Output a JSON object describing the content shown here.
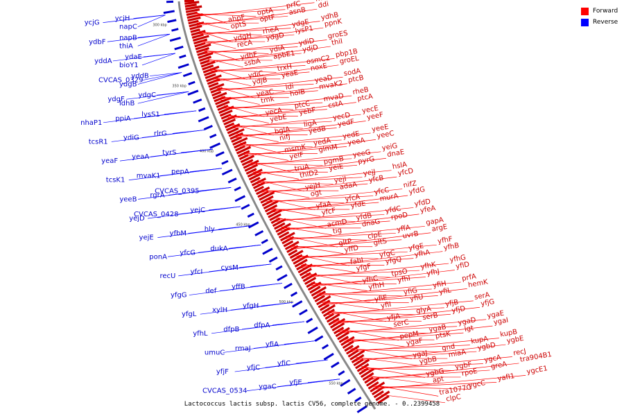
{
  "caption": "Lactococcus lactis subsp. lactis CV56, complete genome. - 0..2399458",
  "legend": [
    {
      "label": "Forward",
      "color": "#ff0000"
    },
    {
      "label": "Reverse",
      "color": "#0000ff"
    }
  ],
  "colors": {
    "forward": "#cc0000",
    "reverse": "#0000cc",
    "backbone": "#888888"
  },
  "ticks": [
    "300 kbp",
    "350 kbp",
    "400 kbp",
    "450 kbp",
    "500 kbp",
    "550 kbp"
  ],
  "forward_genes": [
    "ahpF",
    "optA",
    "prfC",
    "mutM",
    "optS",
    "optF",
    "asnB",
    "ddi",
    "ydgH",
    "rheA",
    "ydgE",
    "ydhB",
    "recA",
    "ydgD",
    "lysP1",
    "ppnK",
    "ydhF",
    "ydiA",
    "ydiD",
    "groES",
    "ssbA",
    "apbE1",
    "ydjD",
    "thiI",
    "ydiC",
    "trxH",
    "osmC2",
    "pbp1B",
    "ydjB",
    "yeaE",
    "noxE",
    "groEL",
    "yeaC",
    "idi",
    "yeaD",
    "sodA",
    "tmk",
    "holB",
    "mvaK2",
    "ptcB",
    "yecA",
    "ptcC",
    "mvaD",
    "rheB",
    "yebE",
    "yebF",
    "cstA",
    "ptcA",
    "bglA",
    "ligA",
    "yecD",
    "yecE",
    "nifJ",
    "yedB",
    "yedF",
    "yeeF",
    "msmK",
    "yedA",
    "yedE",
    "yeeE",
    "yeiF",
    "glmM",
    "yeeA",
    "yeeC",
    "truA",
    "pgmB",
    "yeeG",
    "yeiG",
    "thiD2",
    "yeiE",
    "pyrG",
    "dnaE",
    "yejH",
    "yejI",
    "yejJ",
    "hslA",
    "ogt",
    "adaA",
    "yfcB",
    "yfcD",
    "yfaA",
    "yfcA",
    "yfcC",
    "nifZ",
    "yfcF",
    "yfdE",
    "murA",
    "yfdG",
    "acmD",
    "yfdB",
    "yfdC",
    "yfdD",
    "tig",
    "dnaG",
    "rpoD",
    "yfeA",
    "gltP",
    "clpE",
    "yffA",
    "gapA",
    "yffD",
    "gltS",
    "uvrB",
    "argE",
    "fabI",
    "yfgC",
    "yfgE",
    "yfhF",
    "yfgF",
    "yfgQ",
    "yfhA",
    "yfhB",
    "yfhC",
    "tpsO",
    "yfhK",
    "yfhG",
    "yfhH",
    "yfhI",
    "yfhJ",
    "yfiD",
    "yfiE",
    "yfiG",
    "yfiH",
    "prfA",
    "yfiI",
    "yfiU",
    "yfiL",
    "hemK",
    "yfjA",
    "glyA",
    "yfjB",
    "serA",
    "serC",
    "serB",
    "yfjD",
    "yfjG",
    "pepM",
    "ygaB",
    "ygaD",
    "ygaE",
    "ygaF",
    "ptsK",
    "lgt",
    "ygaI",
    "ygaJ",
    "gnd",
    "kupA",
    "kupB",
    "ygbB",
    "miaA",
    "ygbD",
    "ygbE",
    "ygbG",
    "ygbF",
    "ygcA",
    "recJ",
    "apt",
    "rpoE",
    "greA",
    "tra904B1",
    "tra1077G",
    "ygcC",
    "yafI1",
    "ygcE1",
    "clpC"
  ],
  "reverse_genes": [
    "ycjH",
    "ycjG",
    "napC",
    "napB",
    "ydbF",
    "thiA",
    "ydaE",
    "yddA",
    "bioY1",
    "yddB",
    "CVCAS_0329",
    "ydgB",
    "ydgC",
    "ydgF",
    "ldhB",
    "lysS1",
    "ppiA",
    "nhaP1",
    "rlrG",
    "ydiG",
    "tcsR1",
    "tyrS",
    "yeaA",
    "yeaF",
    "pepA",
    "mvaK1",
    "tcsK1",
    "CVCAS_0395",
    "rgrA",
    "yeeB",
    "yejC",
    "CVCAS_0428",
    "yejD",
    "hly",
    "yfbM",
    "yejE",
    "dukA",
    "yfcG",
    "ponA",
    "cysM",
    "yfcI",
    "recU",
    "yffB",
    "def",
    "yfgG",
    "yfgH",
    "xylH",
    "yfgL",
    "dfpA",
    "dfpB",
    "yfhL",
    "yfiA",
    "rmaJ",
    "umuC",
    "yfiC",
    "yfjC",
    "yfjF",
    "yfjE",
    "ygaC",
    "CVCAS_0534"
  ]
}
